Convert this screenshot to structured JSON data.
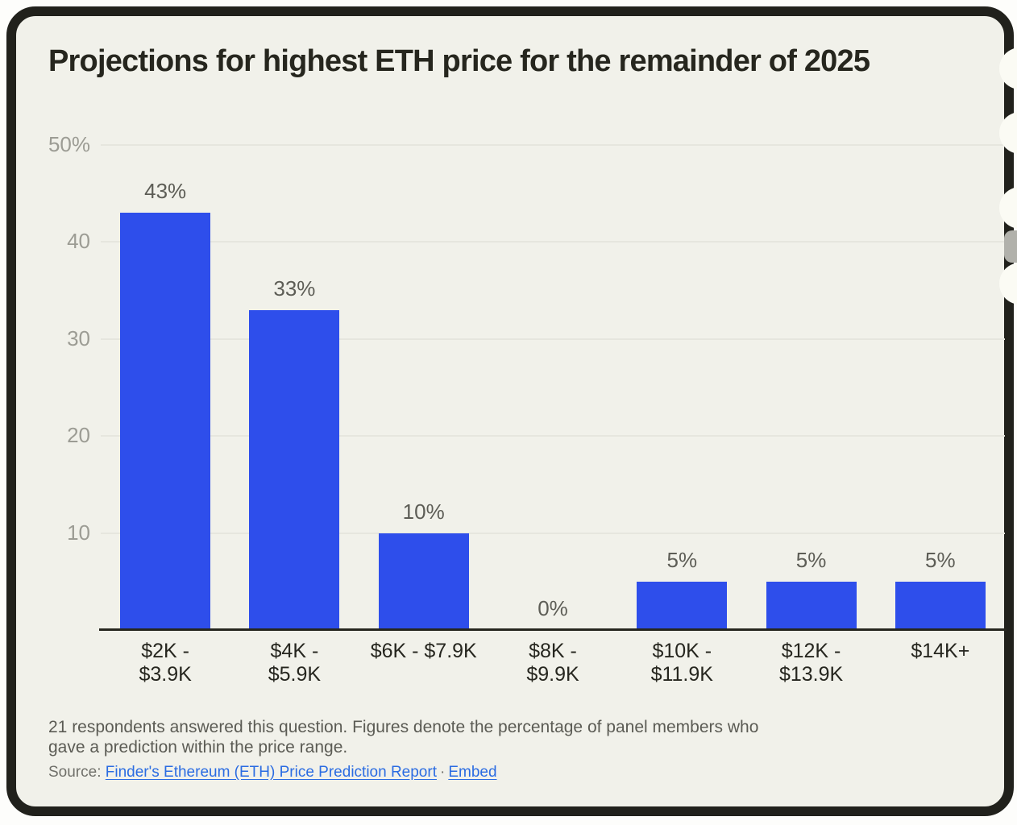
{
  "header": {
    "title": "Projections for highest ETH price for the remainder of 2025"
  },
  "chart_data": {
    "type": "bar",
    "title": "Projections for highest ETH price for the remainder of 2025",
    "categories": [
      "$2K - $3.9K",
      "$4K - $5.9K",
      "$6K - $7.9K",
      "$8K - $9.9K",
      "$10K - $11.9K",
      "$12K - $13.9K",
      "$14K+"
    ],
    "category_lines": [
      [
        "$2K -",
        "$3.9K"
      ],
      [
        "$4K -",
        "$5.9K"
      ],
      [
        "$6K - $7.9K"
      ],
      [
        "$8K -",
        "$9.9K"
      ],
      [
        "$10K -",
        "$11.9K"
      ],
      [
        "$12K -",
        "$13.9K"
      ],
      [
        "$14K+"
      ]
    ],
    "values": [
      43,
      33,
      10,
      0,
      5,
      5,
      5
    ],
    "value_labels": [
      "43%",
      "33%",
      "10%",
      "0%",
      "5%",
      "5%",
      "5%"
    ],
    "xlabel": "",
    "ylabel": "",
    "ylim": [
      0,
      50
    ],
    "yticks": [
      {
        "label": "50%",
        "value": 50
      },
      {
        "label": "40",
        "value": 40
      },
      {
        "label": "30",
        "value": 30
      },
      {
        "label": "20",
        "value": 20
      },
      {
        "label": "10",
        "value": 10
      }
    ],
    "grid": true,
    "legend": "none",
    "bar_color": "#2e4eeb"
  },
  "footer": {
    "note": "21 respondents answered this question. Figures denote the percentage of panel members who gave a prediction within the price range.",
    "source_label": "Source:",
    "source_link": "Finder's Ethereum (ETH) Price Prediction Report",
    "separator": "·",
    "embed_link": "Embed"
  },
  "colors": {
    "bar": "#2e4eeb",
    "card_background": "#f1f1ea",
    "frame": "#21211c",
    "link": "#2b6ce2",
    "axis": "#26261f",
    "gridline": "#e6e6de",
    "ytick_text": "#9c9c94",
    "value_text": "#5d5d56",
    "title_text": "#26261e"
  }
}
